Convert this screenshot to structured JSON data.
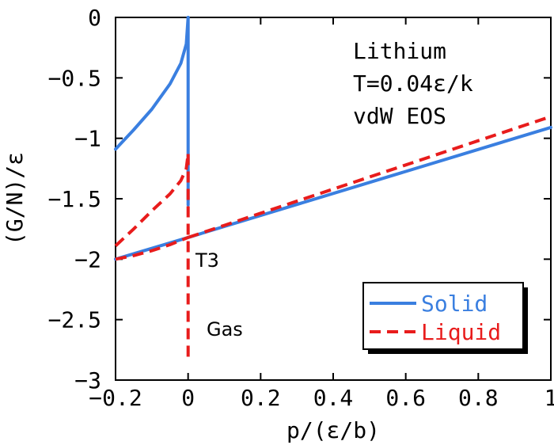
{
  "chart_data": {
    "type": "line",
    "xlabel": "p/(ε/b)",
    "ylabel": "(G/N)/ε",
    "xlim": [
      -0.2,
      1.0
    ],
    "ylim": [
      -3.0,
      0.0
    ],
    "xticks": [
      -0.2,
      0,
      0.2,
      0.4,
      0.6,
      0.8,
      1.0
    ],
    "xtick_labels": [
      "−0.2",
      "0",
      "0.2",
      "0.4",
      "0.6",
      "0.8",
      "1"
    ],
    "yticks": [
      0,
      -0.5,
      -1.0,
      -1.5,
      -2.0,
      -2.5,
      -3.0
    ],
    "ytick_labels": [
      "0",
      "−0.5",
      "−1",
      "−1.5",
      "−2",
      "−2.5",
      "−3"
    ],
    "grid": false,
    "annotations": {
      "material": "Lithium",
      "temperature": "T=0.04ε/k",
      "eos": "vdW EOS",
      "triple_point": "T3",
      "gas": "Gas"
    },
    "legend": {
      "position": "bottom-right"
    },
    "series": [
      {
        "name": "Solid",
        "color": "#3a7fe0",
        "dash": "solid",
        "segments": [
          {
            "x": [
              -0.2,
              -0.15,
              -0.1,
              -0.05,
              -0.02,
              -0.005,
              0.0
            ],
            "y": [
              -1.09,
              -0.93,
              -0.76,
              -0.55,
              -0.38,
              -0.22,
              0.0
            ]
          },
          {
            "x": [
              0.0,
              0.0
            ],
            "y": [
              0.0,
              -1.55
            ]
          },
          {
            "x": [
              -0.2,
              0.0,
              1.0
            ],
            "y": [
              -2.0,
              -1.82,
              -0.91
            ]
          }
        ]
      },
      {
        "name": "Liquid",
        "color": "#e81c1c",
        "dash": "dashed",
        "segments": [
          {
            "x": [
              -0.2,
              -0.15,
              -0.1,
              -0.05,
              -0.02,
              -0.005,
              0.0
            ],
            "y": [
              -1.89,
              -1.75,
              -1.6,
              -1.46,
              -1.35,
              -1.25,
              -1.13
            ]
          },
          {
            "x": [
              0.0,
              0.0
            ],
            "y": [
              -1.13,
              -2.82
            ]
          },
          {
            "x": [
              -0.2,
              -0.15,
              -0.1,
              -0.05,
              0.0
            ],
            "y": [
              -2.0,
              -1.97,
              -1.93,
              -1.88,
              -1.82
            ]
          },
          {
            "x": [
              0.0,
              0.1,
              0.2,
              0.4,
              0.6,
              0.8,
              1.0
            ],
            "y": [
              -1.82,
              -1.72,
              -1.62,
              -1.42,
              -1.22,
              -1.02,
              -0.82
            ]
          }
        ]
      }
    ]
  }
}
